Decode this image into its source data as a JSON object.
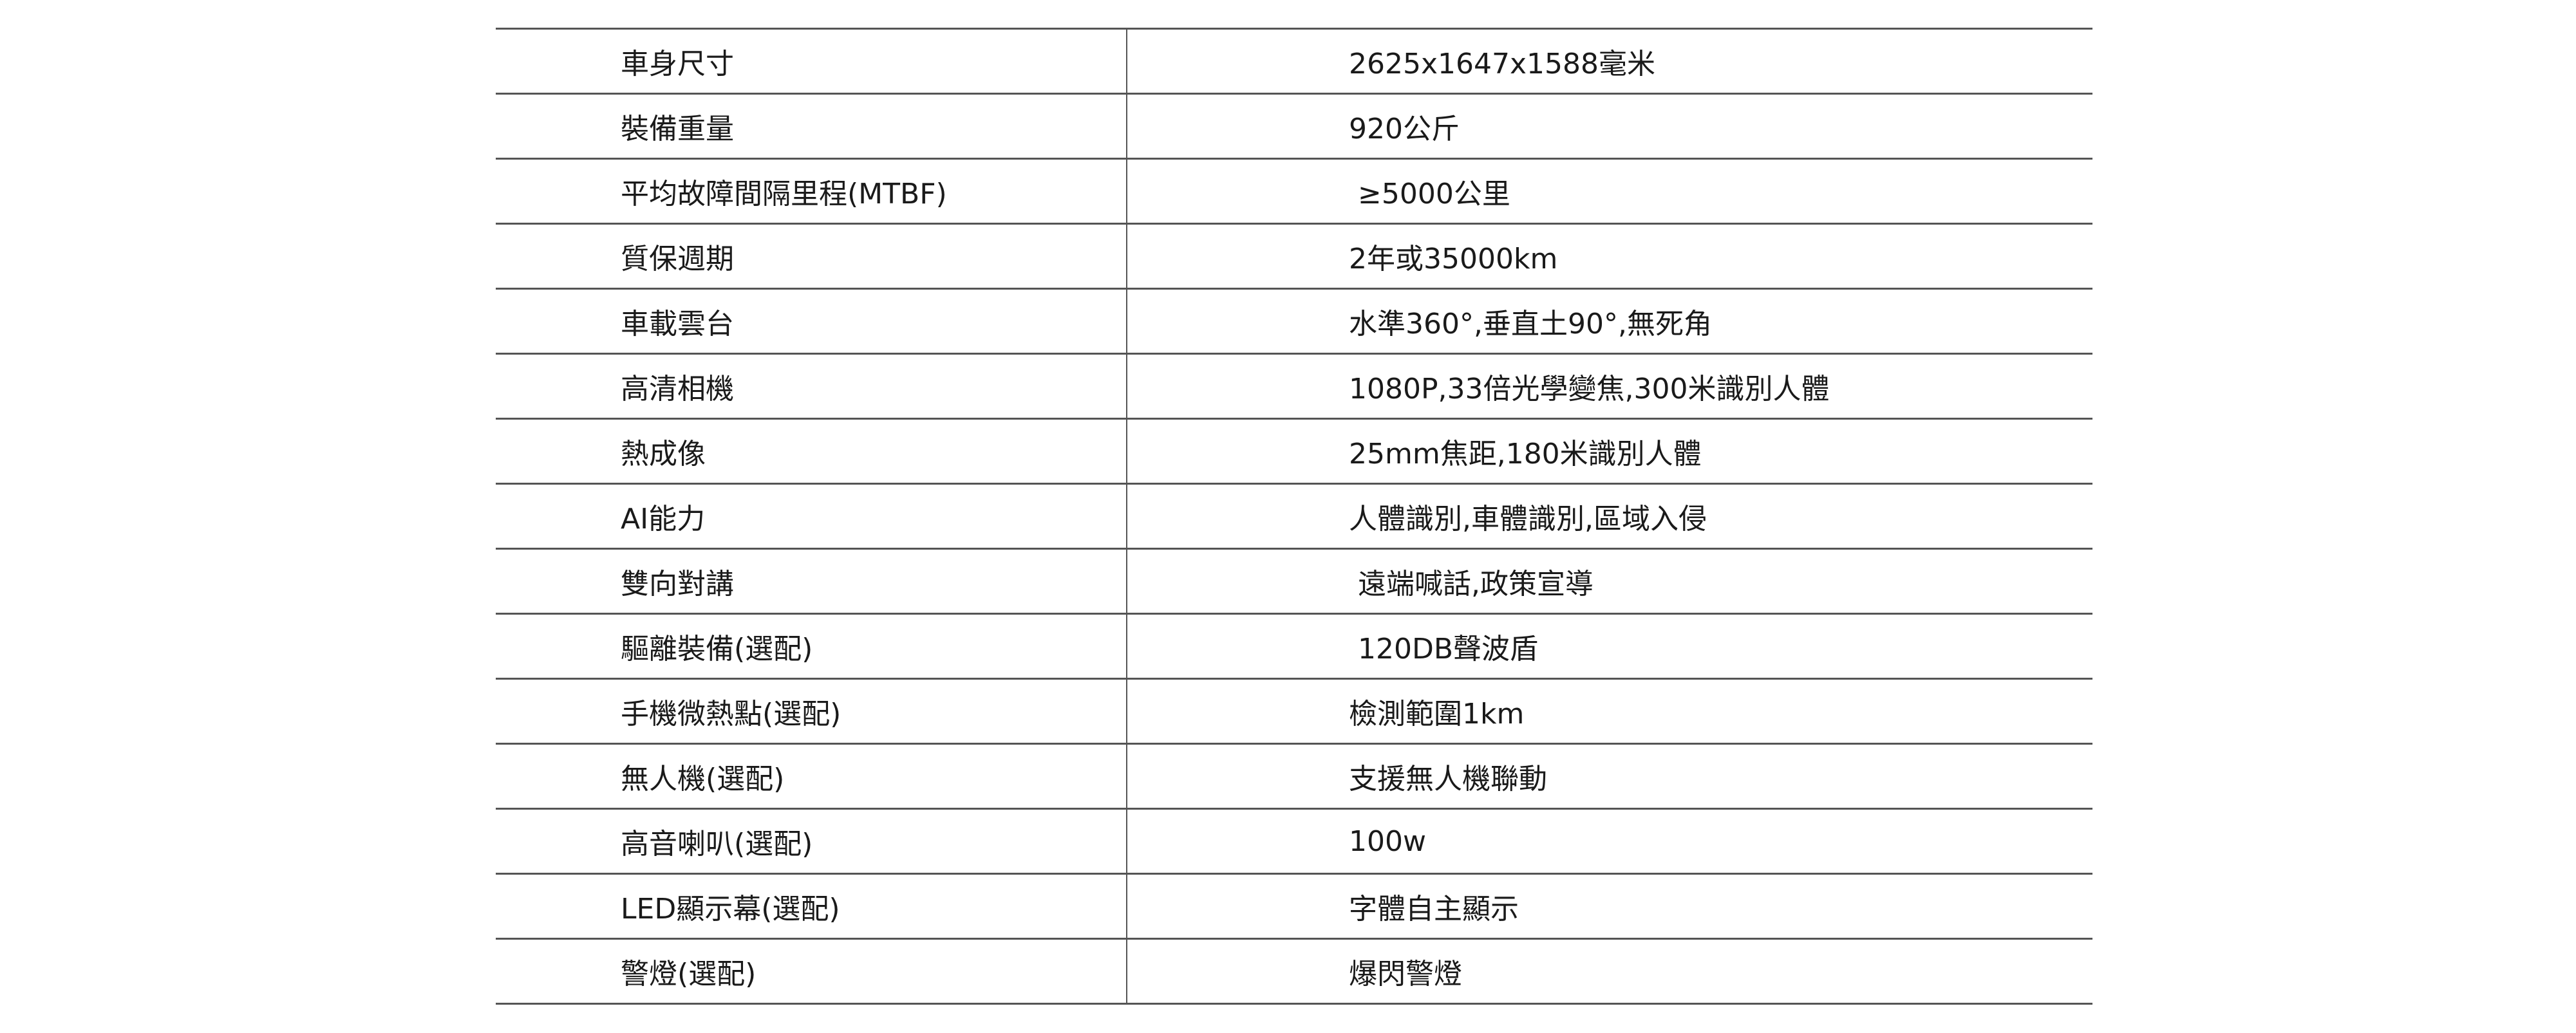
{
  "specs": [
    {
      "label": "車身尺寸",
      "value": "2625x1647x1588毫米"
    },
    {
      "label": "裝備重量",
      "value": "920公斤"
    },
    {
      "label": "平均故障間隔里程(MTBF)",
      "value": " ≥5000公里"
    },
    {
      "label": "質保週期",
      "value": "2年或35000km"
    },
    {
      "label": "車載雲台",
      "value": "水準360°,垂直土90°,無死角"
    },
    {
      "label": "高清相機",
      "value": "1080P,33倍光學變焦,300米識別人體"
    },
    {
      "label": "熱成像",
      "value": "25mm焦距,180米識別人體"
    },
    {
      "label": "AI能力",
      "value": "人體識別,車體識別,區域入侵"
    },
    {
      "label": "雙向對講",
      "value": " 遠端喊話,政策宣導"
    },
    {
      "label": "驅離裝備(選配)",
      "value": " 120DB聲波盾"
    },
    {
      "label": "手機微熱點(選配)",
      "value": "檢測範圍1km"
    },
    {
      "label": "無人機(選配)",
      "value": "支援無人機聯動"
    },
    {
      "label": "高音喇叭(選配)",
      "value": "100w"
    },
    {
      "label": "LED顯示幕(選配)",
      "value": "字體自主顯示"
    },
    {
      "label": "警燈(選配)",
      "value": "爆閃警燈"
    }
  ]
}
